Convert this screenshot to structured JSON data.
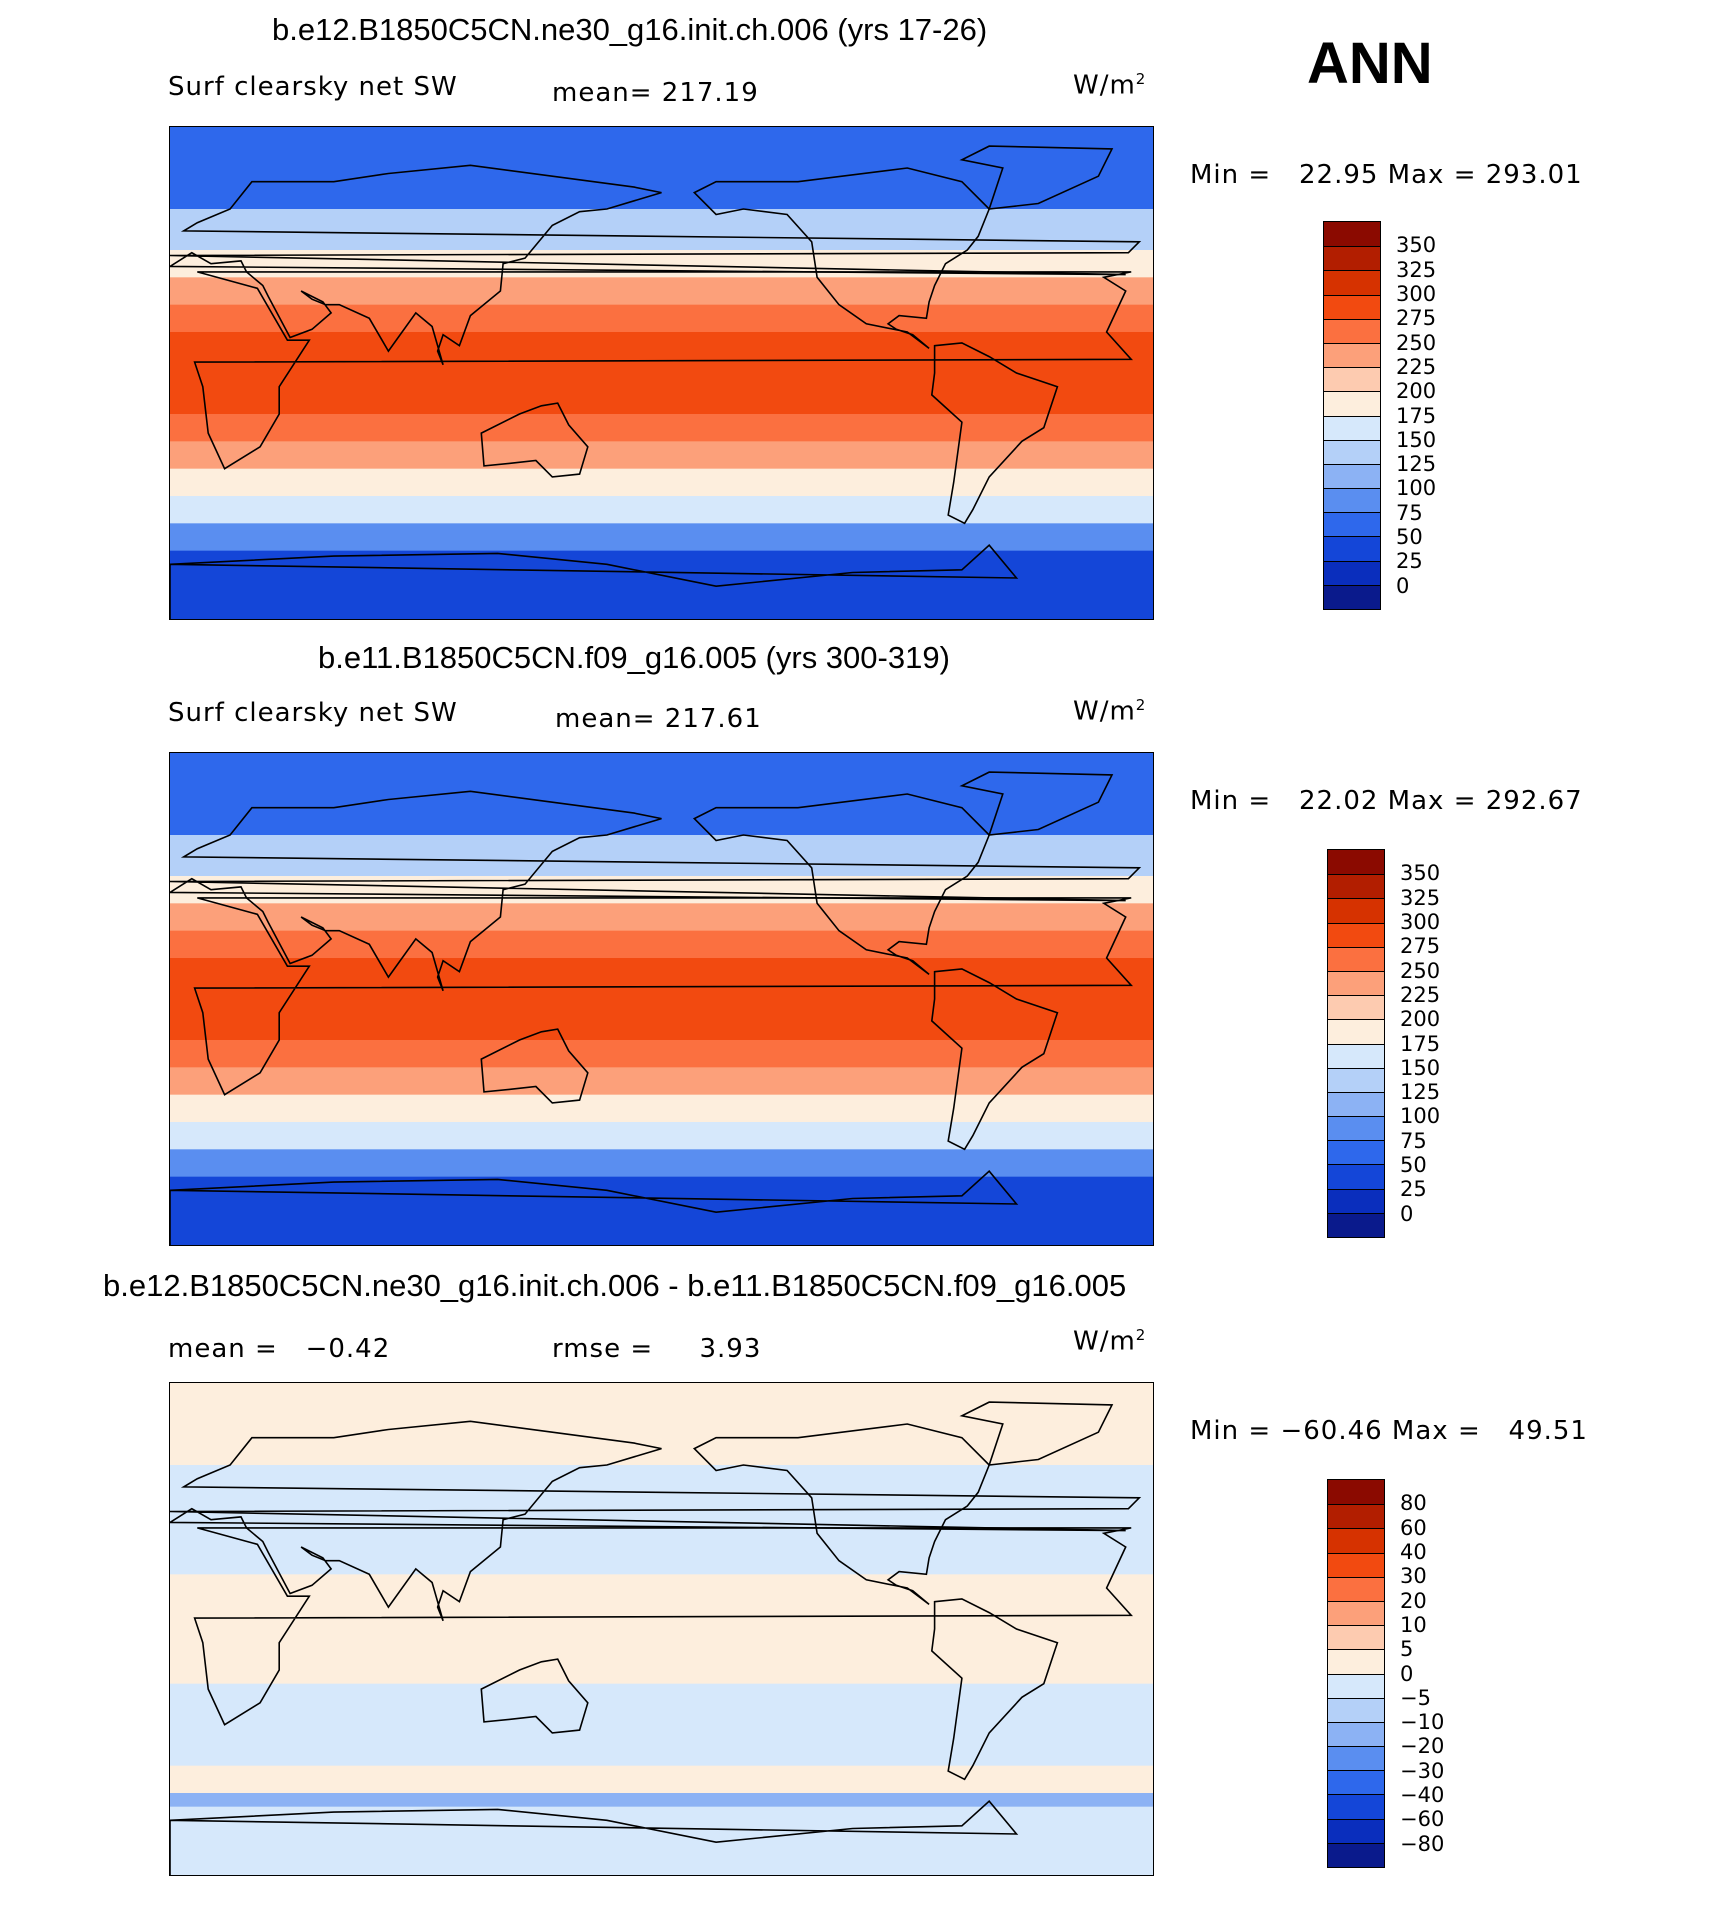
{
  "page_label": "ANN",
  "panels": [
    {
      "title": "b.e12.B1850C5CN.ne30_g16.init.ch.006 (yrs 17-26)",
      "left_label": "Surf clearsky net SW",
      "center_label": "mean= 217.19",
      "right_label_base": "W/m",
      "right_label_sup": "2",
      "minmax": "Min =   22.95 Max = 293.01",
      "colorbar": {
        "ticks": [
          "350",
          "325",
          "300",
          "275",
          "250",
          "225",
          "200",
          "175",
          "150",
          "125",
          "100",
          "75",
          "50",
          "25",
          "0"
        ],
        "colors": [
          "#8b0a00",
          "#b21e00",
          "#d63200",
          "#f24a10",
          "#fb7040",
          "#fca07a",
          "#fdcbb0",
          "#fdeedd",
          "#d6e8fb",
          "#b4d0f8",
          "#8cb2f4",
          "#5a8ef0",
          "#2e68ec",
          "#1446d8",
          "#0a2ebd",
          "#0a1a8c"
        ]
      },
      "chart_data": {
        "type": "heatmap",
        "title": "b.e12.B1850C5CN.ne30_g16.init.ch.006 (yrs 17-26)",
        "variable": "Surf clearsky net SW",
        "units": "W/m2",
        "mean": 217.19,
        "min": 22.95,
        "max": 293.01,
        "contour_levels": [
          0,
          25,
          50,
          75,
          100,
          125,
          150,
          175,
          200,
          225,
          250,
          275,
          300,
          325,
          350
        ],
        "zonal_bands": [
          {
            "lat_range": [
              60,
              90
            ],
            "value": 60
          },
          {
            "lat_range": [
              45,
              60
            ],
            "value": 140
          },
          {
            "lat_range": [
              35,
              45
            ],
            "value": 190
          },
          {
            "lat_range": [
              25,
              35
            ],
            "value": 230
          },
          {
            "lat_range": [
              15,
              25
            ],
            "value": 260
          },
          {
            "lat_range": [
              -15,
              15
            ],
            "value": 285
          },
          {
            "lat_range": [
              -25,
              -15
            ],
            "value": 260
          },
          {
            "lat_range": [
              -35,
              -25
            ],
            "value": 230
          },
          {
            "lat_range": [
              -45,
              -35
            ],
            "value": 190
          },
          {
            "lat_range": [
              -55,
              -45
            ],
            "value": 150
          },
          {
            "lat_range": [
              -65,
              -55
            ],
            "value": 90
          },
          {
            "lat_range": [
              -90,
              -65
            ],
            "value": 40
          }
        ]
      }
    },
    {
      "title": "b.e11.B1850C5CN.f09_g16.005 (yrs 300-319)",
      "left_label": "Surf clearsky net SW",
      "center_label": "mean= 217.61",
      "right_label_base": "W/m",
      "right_label_sup": "2",
      "minmax": "Min =   22.02 Max = 292.67",
      "colorbar": {
        "ticks": [
          "350",
          "325",
          "300",
          "275",
          "250",
          "225",
          "200",
          "175",
          "150",
          "125",
          "100",
          "75",
          "50",
          "25",
          "0"
        ],
        "colors": [
          "#8b0a00",
          "#b21e00",
          "#d63200",
          "#f24a10",
          "#fb7040",
          "#fca07a",
          "#fdcbb0",
          "#fdeedd",
          "#d6e8fb",
          "#b4d0f8",
          "#8cb2f4",
          "#5a8ef0",
          "#2e68ec",
          "#1446d8",
          "#0a2ebd",
          "#0a1a8c"
        ]
      },
      "chart_data": {
        "type": "heatmap",
        "title": "b.e11.B1850C5CN.f09_g16.005 (yrs 300-319)",
        "variable": "Surf clearsky net SW",
        "units": "W/m2",
        "mean": 217.61,
        "min": 22.02,
        "max": 292.67,
        "contour_levels": [
          0,
          25,
          50,
          75,
          100,
          125,
          150,
          175,
          200,
          225,
          250,
          275,
          300,
          325,
          350
        ],
        "zonal_bands": [
          {
            "lat_range": [
              60,
              90
            ],
            "value": 60
          },
          {
            "lat_range": [
              45,
              60
            ],
            "value": 140
          },
          {
            "lat_range": [
              35,
              45
            ],
            "value": 190
          },
          {
            "lat_range": [
              25,
              35
            ],
            "value": 230
          },
          {
            "lat_range": [
              15,
              25
            ],
            "value": 260
          },
          {
            "lat_range": [
              -15,
              15
            ],
            "value": 285
          },
          {
            "lat_range": [
              -25,
              -15
            ],
            "value": 260
          },
          {
            "lat_range": [
              -35,
              -25
            ],
            "value": 230
          },
          {
            "lat_range": [
              -45,
              -35
            ],
            "value": 190
          },
          {
            "lat_range": [
              -55,
              -45
            ],
            "value": 150
          },
          {
            "lat_range": [
              -65,
              -55
            ],
            "value": 90
          },
          {
            "lat_range": [
              -90,
              -65
            ],
            "value": 40
          }
        ]
      }
    },
    {
      "title": "b.e12.B1850C5CN.ne30_g16.init.ch.006 - b.e11.B1850C5CN.f09_g16.005",
      "left_label": "mean =   −0.42",
      "center_label": "rmse =     3.93",
      "right_label_base": "W/m",
      "right_label_sup": "2",
      "minmax": "Min = −60.46 Max =   49.51",
      "colorbar": {
        "ticks": [
          "80",
          "60",
          "40",
          "30",
          "20",
          "10",
          "5",
          "0",
          "−5",
          "−10",
          "−20",
          "−30",
          "−40",
          "−60",
          "−80"
        ],
        "colors": [
          "#8b0a00",
          "#b21e00",
          "#d63200",
          "#f24a10",
          "#fb7040",
          "#fca07a",
          "#fdcbb0",
          "#fdeedd",
          "#d6e8fb",
          "#b4d0f8",
          "#8cb2f4",
          "#5a8ef0",
          "#2e68ec",
          "#1446d8",
          "#0a2ebd",
          "#0a1a8c"
        ]
      },
      "chart_data": {
        "type": "heatmap",
        "title": "b.e12.B1850C5CN.ne30_g16.init.ch.006 - b.e11.B1850C5CN.f09_g16.005",
        "units": "W/m2",
        "mean": -0.42,
        "rmse": 3.93,
        "min": -60.46,
        "max": 49.51,
        "contour_levels": [
          -80,
          -60,
          -40,
          -30,
          -20,
          -10,
          -5,
          0,
          5,
          10,
          20,
          30,
          40,
          60,
          80
        ],
        "zonal_bands": [
          {
            "lat_range": [
              60,
              90
            ],
            "value": 2
          },
          {
            "lat_range": [
              20,
              60
            ],
            "value": -2
          },
          {
            "lat_range": [
              -20,
              20
            ],
            "value": 1
          },
          {
            "lat_range": [
              -50,
              -20
            ],
            "value": -2
          },
          {
            "lat_range": [
              -60,
              -50
            ],
            "value": 3
          },
          {
            "lat_range": [
              -65,
              -60
            ],
            "value": -12
          },
          {
            "lat_range": [
              -90,
              -65
            ],
            "value": -3
          }
        ]
      }
    }
  ]
}
